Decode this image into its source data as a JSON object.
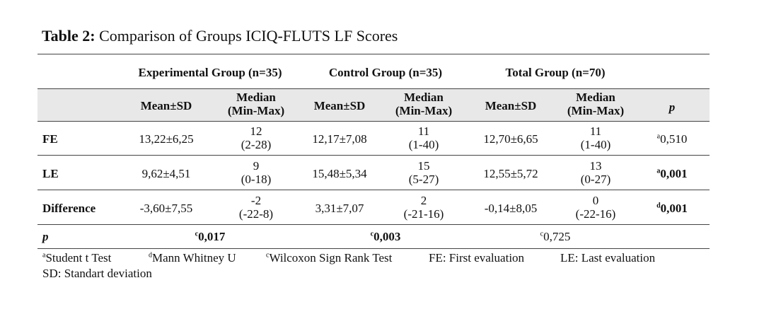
{
  "caption": {
    "label": "Table 2:",
    "text": "Comparison of Groups ICIQ-FLUTS LF Scores"
  },
  "groups": [
    "Experimental Group (n=35)",
    "Control Group (n=35)",
    "Total Group (n=70)"
  ],
  "subheaders": {
    "mean_sd": "Mean±SD",
    "median_line1": "Median",
    "median_line2": "(Min-Max)",
    "p": "p"
  },
  "rows": [
    {
      "label": "FE",
      "exp_mean": "13,22±6,25",
      "exp_median": "12",
      "exp_range": "(2-28)",
      "ctl_mean": "12,17±7,08",
      "ctl_median": "11",
      "ctl_range": "(1-40)",
      "tot_mean": "12,70±6,65",
      "tot_median": "11",
      "tot_range": "(1-40)",
      "p_sup": "a",
      "p_value": "0,510"
    },
    {
      "label": "LE",
      "exp_mean": "9,62±4,51",
      "exp_median": "9",
      "exp_range": "(0-18)",
      "ctl_mean": "15,48±5,34",
      "ctl_median": "15",
      "ctl_range": "(5-27)",
      "tot_mean": "12,55±5,72",
      "tot_median": "13",
      "tot_range": "(0-27)",
      "p_sup": "a",
      "p_value": "0,001"
    },
    {
      "label": "Difference",
      "exp_mean": "-3,60±7,55",
      "exp_median": "-2",
      "exp_range": "(-22-8)",
      "ctl_mean": "3,31±7,07",
      "ctl_median": "2",
      "ctl_range": "(-21-16)",
      "tot_mean": "-0,14±8,05",
      "tot_median": "0",
      "tot_range": "(-22-16)",
      "p_sup": "d",
      "p_value": "0,001"
    }
  ],
  "p_row": {
    "label": "p",
    "exp_sup": "c",
    "exp_value": "0,017",
    "ctl_sup": "c",
    "ctl_value": "0,003",
    "tot_sup": "c",
    "tot_value": "0,725"
  },
  "footnotes": {
    "a_sup": "a",
    "a_text": "Student t Test",
    "d_sup": "d",
    "d_text": "Mann Whitney U",
    "c_sup": "c",
    "c_text": "Wilcoxon Sign Rank Test",
    "fe": "FE: First evaluation",
    "le": "LE: Last evaluation",
    "sd": "SD: Standart deviation"
  }
}
